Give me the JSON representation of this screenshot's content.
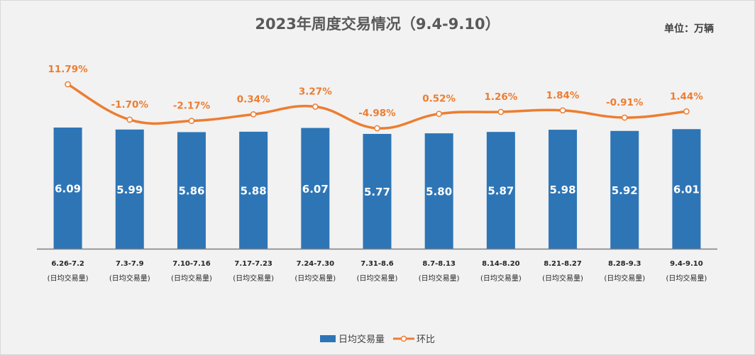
{
  "title": "2023年周度交易情况（9.4-9.10）",
  "unit_label": "单位：万辆",
  "colors": {
    "bar": "#2e75b6",
    "line": "#ed7d31",
    "bar_label": "#ffffff",
    "pct_label": "#ed7d31"
  },
  "chart_data": {
    "type": "bar",
    "categories": [
      "6.26-7.2",
      "7.3-7.9",
      "7.10-7.16",
      "7.17-7.23",
      "7.24-7.30",
      "7.31-8.6",
      "8.7-8.13",
      "8.14-8.20",
      "8.21-8.27",
      "8.28-9.3",
      "9.4-9.10"
    ],
    "category_sublabel": "(日均交易量)",
    "series": [
      {
        "name": "日均交易量",
        "type": "bar",
        "values": [
          6.09,
          5.99,
          5.86,
          5.88,
          6.07,
          5.77,
          5.8,
          5.87,
          5.98,
          5.92,
          6.01
        ],
        "labels": [
          "6.09",
          "5.99",
          "5.86",
          "5.88",
          "6.07",
          "5.77",
          "5.80",
          "5.87",
          "5.98",
          "5.92",
          "6.01"
        ]
      },
      {
        "name": "环比",
        "type": "line",
        "values": [
          11.79,
          -1.7,
          -2.17,
          0.34,
          3.27,
          -4.98,
          0.52,
          1.26,
          1.84,
          -0.91,
          1.44
        ],
        "labels": [
          "11.79%",
          "-1.70%",
          "-2.17%",
          "0.34%",
          "3.27%",
          "-4.98%",
          "0.52%",
          "1.26%",
          "1.84%",
          "-0.91%",
          "1.44%"
        ]
      }
    ],
    "legend_position": "bottom"
  },
  "legend": {
    "bar_label": "日均交易量",
    "line_label": "环比"
  }
}
